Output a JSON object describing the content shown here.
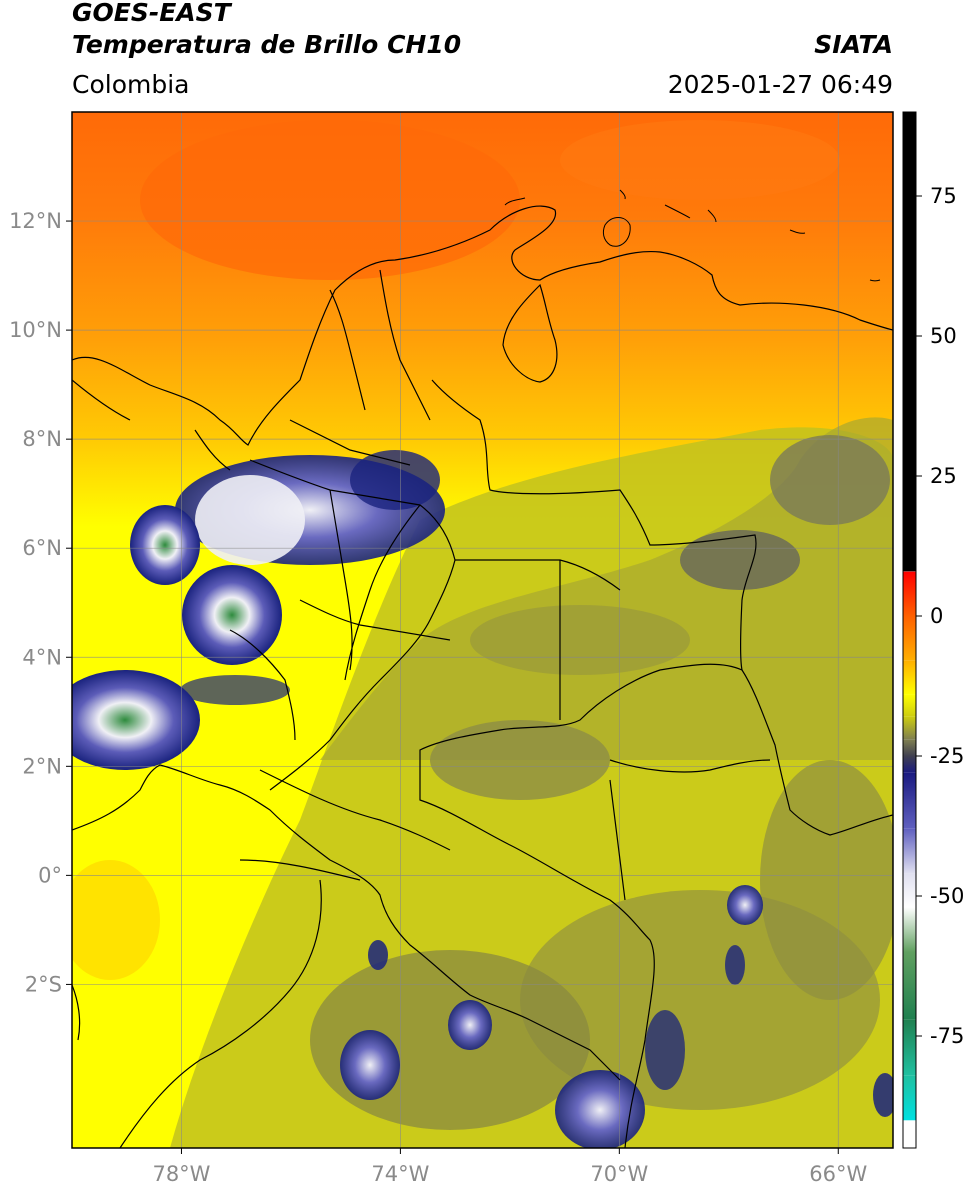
{
  "header": {
    "satellite": "GOES-EAST",
    "product": "Temperatura de Brillo CH10",
    "brand": "SIATA",
    "region": "Colombia",
    "datetime": "2025-01-27 06:49"
  },
  "map": {
    "lon_range": [
      -80,
      -65
    ],
    "lat_range": [
      -5,
      14
    ],
    "lat_ticks": [
      {
        "value": 12,
        "label": "12°N"
      },
      {
        "value": 10,
        "label": "10°N"
      },
      {
        "value": 8,
        "label": "8°N"
      },
      {
        "value": 6,
        "label": "6°N"
      },
      {
        "value": 4,
        "label": "4°N"
      },
      {
        "value": 2,
        "label": "2°N"
      },
      {
        "value": 0,
        "label": "0°"
      },
      {
        "value": -2,
        "label": "2°S"
      }
    ],
    "lon_ticks": [
      {
        "value": -78,
        "label": "78°W"
      },
      {
        "value": -74,
        "label": "74°W"
      },
      {
        "value": -70,
        "label": "70°W"
      },
      {
        "value": -66,
        "label": "66°W"
      }
    ],
    "grid": true,
    "colors": {
      "warm_orange": "#ff7a0a",
      "yellow": "#ffff00",
      "olive": "#b8b825",
      "gray": "#6f6f55",
      "navy": "#1a237e",
      "white_cloud": "#f0f0f5",
      "green_core": "#2e8b3d"
    }
  },
  "colorbar": {
    "range": [
      -95,
      90
    ],
    "ticks": [
      {
        "value": 75,
        "label": "75"
      },
      {
        "value": 50,
        "label": "50"
      },
      {
        "value": 25,
        "label": "25"
      },
      {
        "value": 0,
        "label": "0"
      },
      {
        "value": -25,
        "label": "-25"
      },
      {
        "value": -50,
        "label": "-50"
      },
      {
        "value": -75,
        "label": "-75"
      }
    ],
    "stops": [
      {
        "value": 90,
        "color": "#000000"
      },
      {
        "value": 8,
        "color": "#000000"
      },
      {
        "value": 7.9,
        "color": "#ff0000"
      },
      {
        "value": 0,
        "color": "#ff6000"
      },
      {
        "value": -8,
        "color": "#ffb000"
      },
      {
        "value": -14,
        "color": "#ffff00"
      },
      {
        "value": -18,
        "color": "#cccc10"
      },
      {
        "value": -22,
        "color": "#808050"
      },
      {
        "value": -25,
        "color": "#404050"
      },
      {
        "value": -28,
        "color": "#1a1a80"
      },
      {
        "value": -38,
        "color": "#6060c0"
      },
      {
        "value": -46,
        "color": "#e0e0f0"
      },
      {
        "value": -52,
        "color": "#ffffff"
      },
      {
        "value": -60,
        "color": "#60a060"
      },
      {
        "value": -72,
        "color": "#208050"
      },
      {
        "value": -82,
        "color": "#20c0a0"
      },
      {
        "value": -90,
        "color": "#00e0e0"
      },
      {
        "value": -90.1,
        "color": "#ffffff"
      },
      {
        "value": -95,
        "color": "#ffffff"
      }
    ]
  }
}
